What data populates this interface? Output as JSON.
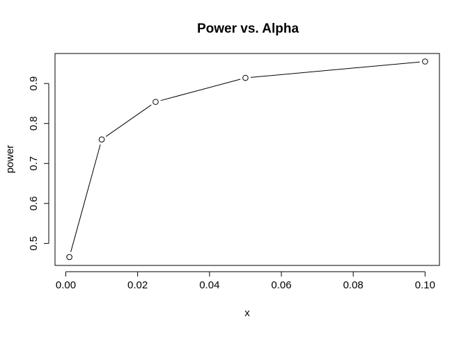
{
  "chart_data": {
    "type": "line",
    "title": "Power vs. Alpha",
    "xlabel": "x",
    "ylabel": "power",
    "x": [
      0.001,
      0.01,
      0.025,
      0.05,
      0.1
    ],
    "series": [
      {
        "values": [
          0.466,
          0.76,
          0.854,
          0.914,
          0.955
        ]
      }
    ],
    "xlim": [
      -0.003,
      0.104
    ],
    "ylim": [
      0.445,
      0.975
    ],
    "x_ticks": [
      0.0,
      0.02,
      0.04,
      0.06,
      0.08,
      0.1
    ],
    "x_tick_labels": [
      "0.00",
      "0.02",
      "0.04",
      "0.06",
      "0.08",
      "0.10"
    ],
    "y_ticks": [
      0.5,
      0.6,
      0.7,
      0.8,
      0.9
    ],
    "y_tick_labels": [
      "0.5",
      "0.6",
      "0.7",
      "0.8",
      "0.9"
    ],
    "marker": "open-circle",
    "grid": false,
    "legend": "none",
    "line_color": "#000000"
  }
}
